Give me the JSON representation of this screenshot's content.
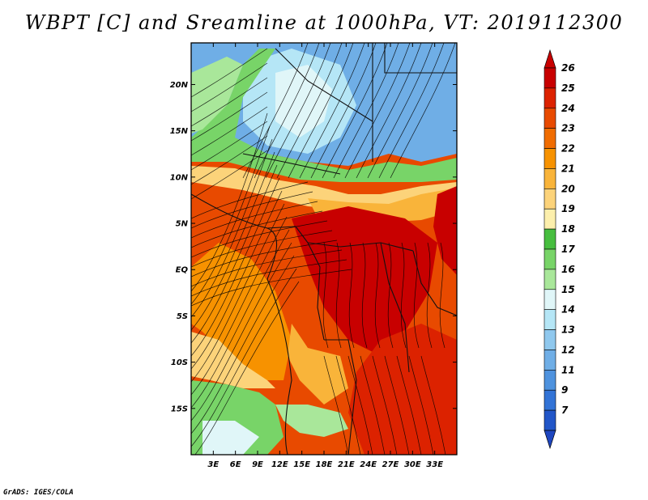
{
  "title": "WBPT [C] and Sreamline at 1000hPa, VT: 2019112300",
  "credit": "GrADS: IGES/COLA",
  "map": {
    "lon_range": [
      0,
      36
    ],
    "lat_range": [
      -20,
      24.5
    ],
    "lat_ticks": [
      {
        "value": 20,
        "label": "20N"
      },
      {
        "value": 15,
        "label": "15N"
      },
      {
        "value": 10,
        "label": "10N"
      },
      {
        "value": 5,
        "label": "5N"
      },
      {
        "value": 0,
        "label": "EQ"
      },
      {
        "value": -5,
        "label": "5S"
      },
      {
        "value": -10,
        "label": "10S"
      },
      {
        "value": -15,
        "label": "15S"
      }
    ],
    "lon_ticks": [
      {
        "value": 3,
        "label": "3E"
      },
      {
        "value": 6,
        "label": "6E"
      },
      {
        "value": 9,
        "label": "9E"
      },
      {
        "value": 12,
        "label": "12E"
      },
      {
        "value": 15,
        "label": "15E"
      },
      {
        "value": 18,
        "label": "18E"
      },
      {
        "value": 21,
        "label": "21E"
      },
      {
        "value": 24,
        "label": "24E"
      },
      {
        "value": 27,
        "label": "27E"
      },
      {
        "value": 30,
        "label": "30E"
      },
      {
        "value": 33,
        "label": "33E"
      }
    ]
  },
  "colorbar": {
    "levels": [
      "26",
      "25",
      "24",
      "23",
      "22",
      "21",
      "20",
      "19",
      "18",
      "17",
      "16",
      "15",
      "14",
      "13",
      "12",
      "11",
      "9",
      "7"
    ],
    "colors": [
      "#c80000",
      "#dc2200",
      "#e84a00",
      "#f06c00",
      "#f79200",
      "#f9b43a",
      "#fcd37a",
      "#fcefac",
      "#47be3f",
      "#78d468",
      "#a9e79a",
      "#e0f6f8",
      "#b5e6f6",
      "#8fc8ee",
      "#6faee6",
      "#4e92de",
      "#3273d6",
      "#2256c8"
    ]
  }
}
